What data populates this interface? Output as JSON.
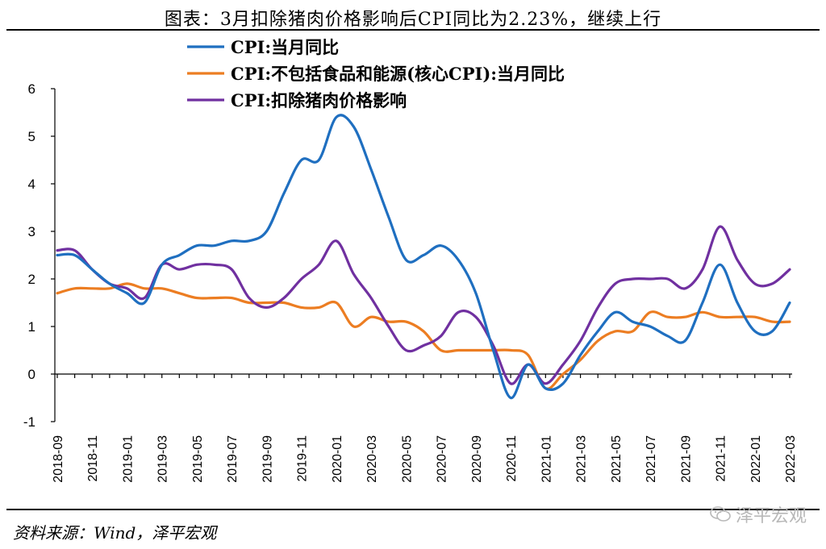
{
  "title": "图表：3月扣除猪肉价格影响后CPI同比为2.23%，继续上行",
  "source": "资料来源：Wind，泽平宏观",
  "watermark": "泽平宏观",
  "chart_data": {
    "type": "line",
    "ylim": [
      -1,
      6
    ],
    "yticks": [
      -1,
      0,
      1,
      2,
      3,
      4,
      5,
      6
    ],
    "x_tick_labels": [
      "2018-09",
      "2018-11",
      "2019-01",
      "2019-03",
      "2019-05",
      "2019-07",
      "2019-09",
      "2019-11",
      "2020-01",
      "2020-03",
      "2020-05",
      "2020-07",
      "2020-09",
      "2020-11",
      "2021-01",
      "2021-03",
      "2021-05",
      "2021-07",
      "2021-09",
      "2021-11",
      "2022-01",
      "2022-03"
    ],
    "x": [
      "2018-09",
      "2018-10",
      "2018-11",
      "2018-12",
      "2019-01",
      "2019-02",
      "2019-03",
      "2019-04",
      "2019-05",
      "2019-06",
      "2019-07",
      "2019-08",
      "2019-09",
      "2019-10",
      "2019-11",
      "2019-12",
      "2020-01",
      "2020-02",
      "2020-03",
      "2020-04",
      "2020-05",
      "2020-06",
      "2020-07",
      "2020-08",
      "2020-09",
      "2020-10",
      "2020-11",
      "2020-12",
      "2021-01",
      "2021-02",
      "2021-03",
      "2021-04",
      "2021-05",
      "2021-06",
      "2021-07",
      "2021-08",
      "2021-09",
      "2021-10",
      "2021-11",
      "2021-12",
      "2022-01",
      "2022-02",
      "2022-03"
    ],
    "grid": false,
    "legend_position": "top-left",
    "series": [
      {
        "name": "CPI:当月同比",
        "color": "#1f6fc0",
        "values": [
          2.5,
          2.5,
          2.2,
          1.9,
          1.7,
          1.5,
          2.3,
          2.5,
          2.7,
          2.7,
          2.8,
          2.8,
          3.0,
          3.8,
          4.5,
          4.5,
          5.4,
          5.2,
          4.3,
          3.3,
          2.4,
          2.5,
          2.7,
          2.4,
          1.7,
          0.5,
          -0.5,
          0.2,
          -0.3,
          -0.2,
          0.4,
          0.9,
          1.3,
          1.1,
          1.0,
          0.8,
          0.7,
          1.5,
          2.3,
          1.5,
          0.9,
          0.9,
          1.5
        ]
      },
      {
        "name": "CPI:不包括食品和能源(核心CPI):当月同比",
        "color": "#ec7d22",
        "values": [
          1.7,
          1.8,
          1.8,
          1.8,
          1.9,
          1.8,
          1.8,
          1.7,
          1.6,
          1.6,
          1.6,
          1.5,
          1.5,
          1.5,
          1.4,
          1.4,
          1.5,
          1.0,
          1.2,
          1.1,
          1.1,
          0.9,
          0.5,
          0.5,
          0.5,
          0.5,
          0.5,
          0.4,
          -0.3,
          0.0,
          0.3,
          0.7,
          0.9,
          0.9,
          1.3,
          1.2,
          1.2,
          1.3,
          1.2,
          1.2,
          1.2,
          1.1,
          1.1
        ]
      },
      {
        "name": "CPI:扣除猪肉价格影响",
        "color": "#7030a0",
        "values": [
          2.6,
          2.6,
          2.2,
          1.9,
          1.8,
          1.6,
          2.3,
          2.2,
          2.3,
          2.3,
          2.2,
          1.6,
          1.4,
          1.6,
          2.0,
          2.3,
          2.8,
          2.1,
          1.6,
          1.0,
          0.5,
          0.6,
          0.8,
          1.3,
          1.2,
          0.6,
          -0.2,
          0.2,
          -0.2,
          0.2,
          0.7,
          1.4,
          1.9,
          2.0,
          2.0,
          2.0,
          1.8,
          2.2,
          3.1,
          2.4,
          1.9,
          1.9,
          2.2
        ]
      }
    ]
  }
}
